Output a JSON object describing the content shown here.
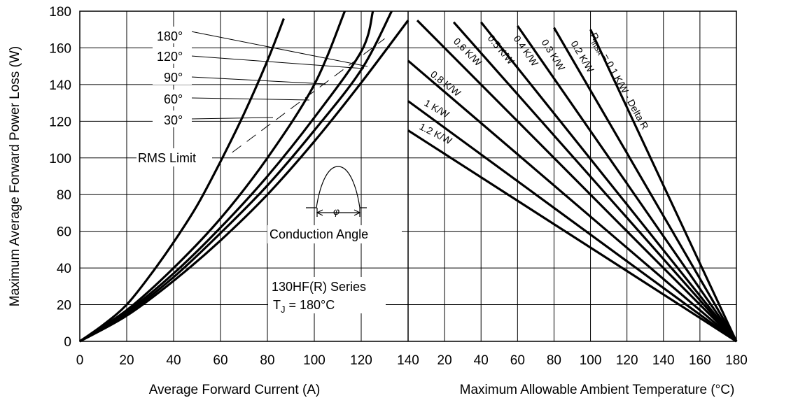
{
  "chart_data": [
    {
      "type": "line",
      "xlabel": "Average Forward Current (A)",
      "ylabel": "Maximum Average Forward Power Loss (W)",
      "xlim": [
        0,
        140
      ],
      "ylim": [
        0,
        180
      ],
      "x_ticks": [
        "0",
        "20",
        "40",
        "60",
        "80",
        "100",
        "120",
        "140"
      ],
      "y_ticks": [
        "0",
        "20",
        "40",
        "60",
        "80",
        "100",
        "120",
        "140",
        "160",
        "180"
      ],
      "grid": true,
      "series": [
        {
          "name": "30°",
          "x": [
            0,
            10,
            20,
            30,
            40,
            50,
            60,
            70,
            80,
            87
          ],
          "y": [
            0,
            9,
            20,
            36,
            54,
            74,
            98,
            124,
            153,
            176
          ]
        },
        {
          "name": "60°",
          "x": [
            0,
            20,
            40,
            60,
            80,
            100,
            113
          ],
          "y": [
            0,
            17,
            40,
            67,
            100,
            140,
            180
          ]
        },
        {
          "name": "90°",
          "x": [
            0,
            20,
            40,
            60,
            80,
            100,
            120,
            125
          ],
          "y": [
            0,
            16,
            37,
            62,
            90,
            122,
            158,
            180
          ]
        },
        {
          "name": "120°",
          "x": [
            0,
            20,
            40,
            60,
            80,
            100,
            120,
            133
          ],
          "y": [
            0,
            15,
            35,
            59,
            85,
            115,
            148,
            180
          ]
        },
        {
          "name": "180°",
          "x": [
            0,
            20,
            40,
            60,
            80,
            100,
            120,
            140
          ],
          "y": [
            0,
            14,
            33,
            55,
            80,
            109,
            141,
            175
          ]
        }
      ],
      "rms_limit": {
        "label": "RMS Limit",
        "x": [
          65,
          130
        ],
        "y": [
          103,
          165
        ]
      },
      "conduction_labels": [
        "180°",
        "120°",
        "90°",
        "60°",
        "30°"
      ],
      "annotations": {
        "conduction_angle": "Conduction Angle",
        "series_name": "130HF(R) Series",
        "tj_prefix": "T",
        "tj_sub": "J",
        "tj_value": " = 180°C"
      }
    },
    {
      "type": "line",
      "xlabel": "Maximum Allowable Ambient Temperature (°C)",
      "xlim": [
        0,
        180
      ],
      "ylim": [
        0,
        180
      ],
      "x_ticks": [
        "20",
        "40",
        "60",
        "80",
        "100",
        "120",
        "140",
        "160",
        "180"
      ],
      "grid": true,
      "series": [
        {
          "name": "0.1 K/W",
          "x": [
            100,
            180
          ],
          "y": [
            170,
            0
          ]
        },
        {
          "name": "0.2 K/W",
          "x": [
            80,
            180
          ],
          "y": [
            171,
            0
          ]
        },
        {
          "name": "0.3 K/W",
          "x": [
            60,
            180
          ],
          "y": [
            172,
            0
          ]
        },
        {
          "name": "0.4 K/W",
          "x": [
            40,
            180
          ],
          "y": [
            174,
            0
          ]
        },
        {
          "name": "0.5 K/W",
          "x": [
            25,
            180
          ],
          "y": [
            174,
            0
          ]
        },
        {
          "name": "0.6 K/W",
          "x": [
            5,
            180
          ],
          "y": [
            175,
            0
          ]
        },
        {
          "name": "0.8 K/W",
          "x": [
            0,
            180
          ],
          "y": [
            153,
            0
          ]
        },
        {
          "name": "1 K/W",
          "x": [
            0,
            180
          ],
          "y": [
            131,
            0
          ]
        },
        {
          "name": "1.2 K/W",
          "x": [
            0,
            180
          ],
          "y": [
            115,
            0
          ]
        }
      ],
      "line_labels": {
        "rth_prefix": "R",
        "rth_sub": "thSA",
        "rth_main": "= 0.1 K/W - Delta R",
        "r02": "0.2 K/W",
        "r03": "0.3 K/W",
        "r04": "0.4 K/W",
        "r05": "0.5 K/W",
        "r06": "0.6 K/W",
        "r08": "0.8 K/W",
        "r1": "1 K/W",
        "r12": "1.2 K/W"
      }
    }
  ]
}
